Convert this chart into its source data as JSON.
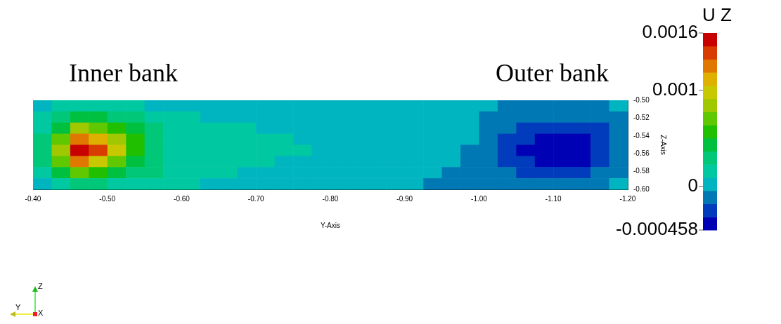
{
  "chart_data": {
    "type": "heatmap",
    "xlabel": "Y-Axis",
    "ylabel": "Z-Axis",
    "clabel": "U Z",
    "annotations": [
      "Inner bank",
      "Outer bank",
      "Z",
      "Y",
      "X"
    ],
    "x": [
      -0.4125,
      -0.4375,
      -0.4625,
      -0.4875,
      -0.5125,
      -0.5375,
      -0.5625,
      -0.5875,
      -0.6125,
      -0.6375,
      -0.6625,
      -0.6875,
      -0.7125,
      -0.7375,
      -0.7625,
      -0.7875,
      -0.8125,
      -0.8375,
      -0.8625,
      -0.8875,
      -0.9125,
      -0.9375,
      -0.9625,
      -0.9875,
      -1.0125,
      -1.0375,
      -1.0625,
      -1.0875,
      -1.1125,
      -1.1375,
      -1.1625,
      -1.1875
    ],
    "xlim": [
      -0.4,
      -1.2
    ],
    "xticks": [
      {
        "value": -0.4,
        "label": "-0.40"
      },
      {
        "value": -0.5,
        "label": "-0.50"
      },
      {
        "value": -0.6,
        "label": "-0.60"
      },
      {
        "value": -0.7,
        "label": "-0.70"
      },
      {
        "value": -0.8,
        "label": "-0.80"
      },
      {
        "value": -0.9,
        "label": "-0.90"
      },
      {
        "value": -1.0,
        "label": "-1.00"
      },
      {
        "value": -1.1,
        "label": "-1.10"
      },
      {
        "value": -1.2,
        "label": "-1.20"
      }
    ],
    "ylim": [
      -0.6,
      -0.5
    ],
    "yticks": [
      {
        "value": -0.6,
        "label": "-0.60"
      },
      {
        "value": -0.58,
        "label": "-0.58"
      },
      {
        "value": -0.56,
        "label": "-0.56"
      },
      {
        "value": -0.54,
        "label": "-0.54"
      },
      {
        "value": -0.52,
        "label": "-0.52"
      },
      {
        "value": -0.5,
        "label": "-0.50"
      }
    ],
    "clim": [
      -0.000458,
      0.0016
    ],
    "cticks": [
      0.0016,
      0.001,
      0,
      -0.000458
    ],
    "cells": [
      [
        5e-05,
        0.0002,
        0.0002,
        0.0002,
        0.0002,
        0.0002,
        5e-05,
        5e-05,
        5e-05,
        5e-05,
        5e-05,
        5e-05,
        5e-05,
        5e-05,
        5e-05,
        5e-05,
        5e-05,
        5e-05,
        5e-05,
        5e-05,
        5e-05,
        5e-05,
        5e-05,
        5e-05,
        5e-05,
        -0.0001,
        -0.0001,
        -0.0001,
        -0.0001,
        -0.0001,
        -0.0001,
        5e-05
      ],
      [
        0.0002,
        0.0003,
        0.00045,
        0.00045,
        0.0003,
        0.0003,
        0.0002,
        0.0002,
        0.0002,
        5e-05,
        5e-05,
        5e-05,
        5e-05,
        5e-05,
        5e-05,
        5e-05,
        5e-05,
        5e-05,
        5e-05,
        5e-05,
        5e-05,
        5e-05,
        5e-05,
        5e-05,
        -0.0001,
        -0.0001,
        -0.0001,
        -0.0001,
        -0.0001,
        -0.0001,
        -0.0001,
        -0.0001
      ],
      [
        0.0002,
        0.00045,
        0.00085,
        0.0007,
        0.0006,
        0.00045,
        0.0003,
        0.0002,
        0.0002,
        0.0002,
        0.0002,
        0.0002,
        5e-05,
        5e-05,
        5e-05,
        5e-05,
        5e-05,
        5e-05,
        5e-05,
        5e-05,
        5e-05,
        5e-05,
        5e-05,
        5e-05,
        -0.0001,
        -0.0001,
        -0.00025,
        -0.00025,
        -0.00025,
        -0.00025,
        -0.00025,
        -0.0001
      ],
      [
        0.0003,
        0.0007,
        0.0012,
        0.0011,
        0.00085,
        0.0006,
        0.0003,
        0.0002,
        0.0002,
        0.0002,
        0.0002,
        0.0002,
        0.0002,
        0.0002,
        5e-05,
        5e-05,
        5e-05,
        5e-05,
        5e-05,
        5e-05,
        5e-05,
        5e-05,
        5e-05,
        5e-05,
        -0.0001,
        -0.00025,
        -0.00025,
        -0.0004,
        -0.0004,
        -0.0004,
        -0.00025,
        -0.0001
      ],
      [
        0.0003,
        0.00085,
        0.0015,
        0.0014,
        0.001,
        0.0006,
        0.0003,
        0.0002,
        0.0002,
        0.0002,
        0.0002,
        0.0002,
        0.0002,
        0.0002,
        0.0002,
        5e-05,
        5e-05,
        5e-05,
        5e-05,
        5e-05,
        5e-05,
        5e-05,
        5e-05,
        -0.0001,
        -0.0001,
        -0.00025,
        -0.0004,
        -0.0004,
        -0.0004,
        -0.0004,
        -0.00025,
        -0.0001
      ],
      [
        0.0003,
        0.0007,
        0.0012,
        0.001,
        0.0007,
        0.00045,
        0.0003,
        0.0002,
        0.0002,
        0.0002,
        0.0002,
        0.0002,
        0.0002,
        5e-05,
        5e-05,
        5e-05,
        5e-05,
        5e-05,
        5e-05,
        5e-05,
        5e-05,
        5e-05,
        5e-05,
        -0.0001,
        -0.0001,
        -0.00025,
        -0.00025,
        -0.0004,
        -0.0004,
        -0.0004,
        -0.00025,
        -0.0001
      ],
      [
        0.0002,
        0.00045,
        0.0007,
        0.0006,
        0.00045,
        0.0003,
        0.0003,
        0.0002,
        0.0002,
        0.0002,
        0.0002,
        5e-05,
        5e-05,
        5e-05,
        5e-05,
        5e-05,
        5e-05,
        5e-05,
        5e-05,
        5e-05,
        5e-05,
        5e-05,
        -0.0001,
        -0.0001,
        -0.0001,
        -0.0001,
        -0.00025,
        -0.00025,
        -0.00025,
        -0.00025,
        -0.0001,
        -0.0001
      ],
      [
        5e-05,
        0.0002,
        0.0003,
        0.0003,
        0.0002,
        0.0002,
        0.0002,
        0.0002,
        0.0002,
        5e-05,
        5e-05,
        5e-05,
        5e-05,
        5e-05,
        5e-05,
        5e-05,
        5e-05,
        5e-05,
        5e-05,
        5e-05,
        5e-05,
        -0.0001,
        -0.0001,
        -0.0001,
        -0.0001,
        -0.0001,
        -0.0001,
        -0.0001,
        -0.0001,
        -0.0001,
        -0.0001,
        5e-05
      ]
    ]
  }
}
